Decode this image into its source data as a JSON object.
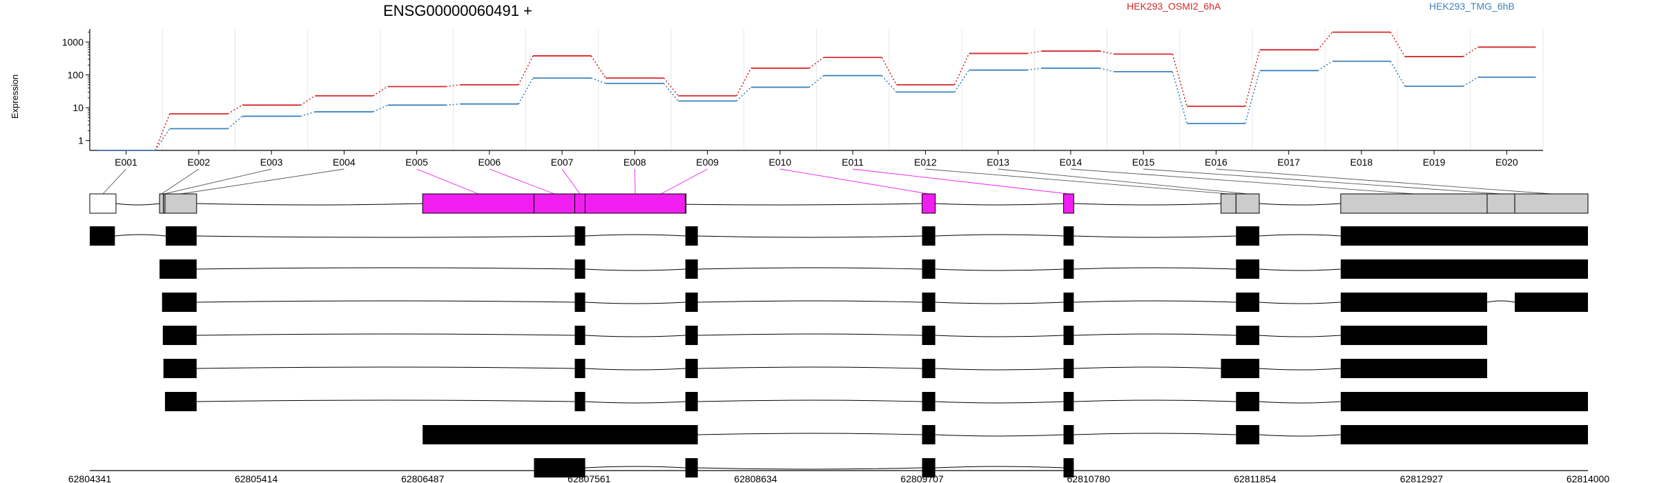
{
  "title": "ENSG00000060491 +",
  "ylabel": "Expression",
  "colors": {
    "series_red": "#d62728",
    "series_blue": "#3c82be",
    "differential_exon": "#f01ef0",
    "exon_grey": "#cccccc",
    "transcript_exon": "#000000",
    "grid": "#e8e8e8"
  },
  "chart_data": {
    "type": "line",
    "title": "ENSG00000060491 +",
    "ylabel": "Expression",
    "y_scale": "log",
    "ylim": [
      0.5,
      2500
    ],
    "y_ticks": [
      1,
      10,
      100,
      1000
    ],
    "y_tick_labels": [
      "1",
      "10",
      "100",
      "1000"
    ],
    "grid": true,
    "legend_placement": "top",
    "categories": [
      "E001",
      "E002",
      "E003",
      "E004",
      "E005",
      "E006",
      "E007",
      "E008",
      "E009",
      "E010",
      "E011",
      "E012",
      "E013",
      "E014",
      "E015",
      "E016",
      "E017",
      "E018",
      "E019",
      "E020"
    ],
    "series": [
      {
        "name": "HEK293_OSMI2_6hA",
        "color": "#d62728",
        "values": [
          0.5,
          6.5,
          12,
          23,
          44,
          50,
          380,
          80,
          23,
          160,
          340,
          50,
          450,
          530,
          430,
          11,
          580,
          2000,
          360,
          700
        ]
      },
      {
        "name": "HEK293_TMG_6hB",
        "color": "#3c82be",
        "values": [
          0.5,
          2.3,
          5.5,
          7.5,
          12,
          13,
          80,
          55,
          16,
          42,
          95,
          30,
          140,
          160,
          125,
          3.3,
          135,
          260,
          45,
          85
        ]
      }
    ],
    "genomic_axis": {
      "start": 62804341,
      "end": 62814000,
      "tick_labels": [
        "62804341",
        "62805414",
        "62806487",
        "62807561",
        "62808634",
        "62809707",
        "62810780",
        "62811854",
        "62812927",
        "62814000"
      ]
    },
    "exons": [
      {
        "id": "E001",
        "start": 62804341,
        "end": 62804510,
        "fill": "white"
      },
      {
        "id": "E002",
        "start": 62804791,
        "end": 62805030,
        "fill": "grey",
        "split": [
          62804816,
          62804826
        ]
      },
      {
        "id": "E003",
        "start": 62806487,
        "end": 62807866,
        "fill": "magenta",
        "split": [
          62807205,
          62807468,
          62807535,
          62808181
        ]
      },
      {
        "id": "E004",
        "start": 62809707,
        "end": 62809792,
        "fill": "magenta"
      },
      {
        "id": "E005",
        "start": 62810619,
        "end": 62810685,
        "fill": "magenta"
      },
      {
        "id": "E006",
        "start": 62811634,
        "end": 62811881,
        "fill": "grey",
        "split": [
          62811731
        ]
      },
      {
        "id": "E007",
        "start": 62812406,
        "end": 62814000,
        "fill": "grey",
        "split": [
          62813350,
          62813528
        ]
      }
    ],
    "transcripts": [
      [
        [
          62804341,
          62804503
        ],
        [
          62804831,
          62805030
        ],
        [
          62807468,
          62807535
        ],
        [
          62808181,
          62808261
        ],
        [
          62809707,
          62809792
        ],
        [
          62810619,
          62810685
        ],
        [
          62811731,
          62811881
        ],
        [
          62812406,
          62814000
        ]
      ],
      [
        [
          62804791,
          62805030
        ],
        [
          62807468,
          62807535
        ],
        [
          62808181,
          62808261
        ],
        [
          62809707,
          62809792
        ],
        [
          62810619,
          62810685
        ],
        [
          62811731,
          62811881
        ],
        [
          62812406,
          62814000
        ]
      ],
      [
        [
          62804807,
          62805030
        ],
        [
          62807468,
          62807535
        ],
        [
          62808181,
          62808261
        ],
        [
          62809707,
          62809792
        ],
        [
          62810619,
          62810685
        ],
        [
          62811731,
          62811881
        ],
        [
          62812406,
          62813350
        ],
        [
          62813528,
          62814000
        ]
      ],
      [
        [
          62804812,
          62805030
        ],
        [
          62807468,
          62807535
        ],
        [
          62808181,
          62808261
        ],
        [
          62809707,
          62809792
        ],
        [
          62810619,
          62810685
        ],
        [
          62811731,
          62811881
        ],
        [
          62812406,
          62813350
        ]
      ],
      [
        [
          62804816,
          62805030
        ],
        [
          62807468,
          62807535
        ],
        [
          62808181,
          62808261
        ],
        [
          62809707,
          62809792
        ],
        [
          62810619,
          62810685
        ],
        [
          62811634,
          62811881
        ],
        [
          62812406,
          62813350
        ]
      ],
      [
        [
          62804826,
          62805030
        ],
        [
          62807468,
          62807535
        ],
        [
          62808181,
          62808261
        ],
        [
          62809707,
          62809792
        ],
        [
          62810619,
          62810685
        ],
        [
          62811731,
          62811881
        ],
        [
          62812406,
          62814000
        ]
      ],
      [
        [
          62806487,
          62808261
        ],
        [
          62809707,
          62809792
        ],
        [
          62810619,
          62810685
        ],
        [
          62811731,
          62811881
        ],
        [
          62812406,
          62814000
        ]
      ],
      [
        [
          62807205,
          62807535
        ],
        [
          62808181,
          62808261
        ],
        [
          62809707,
          62809792
        ],
        [
          62810619,
          62810685
        ]
      ]
    ]
  }
}
